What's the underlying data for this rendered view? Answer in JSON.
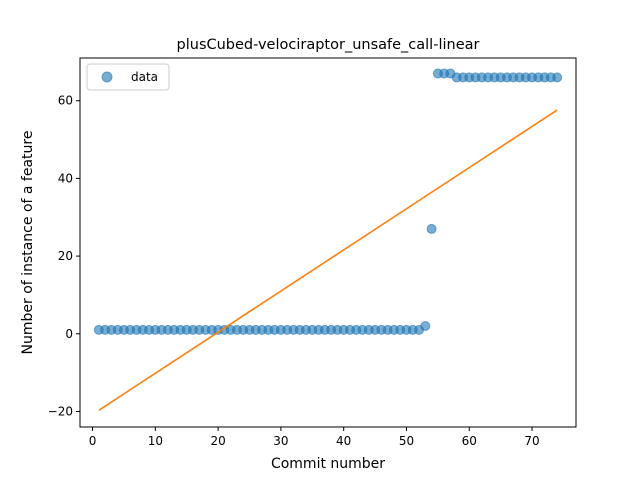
{
  "chart_data": {
    "type": "scatter",
    "title": "plusCubed-velociraptor_unsafe_call-linear",
    "xlabel": "Commit number",
    "ylabel": "Number of instance of a feature",
    "xlim": [
      -2,
      77
    ],
    "ylim": [
      -24,
      71
    ],
    "xticks": [
      0,
      10,
      20,
      30,
      40,
      50,
      60,
      70
    ],
    "yticks": [
      -20,
      0,
      20,
      40,
      60
    ],
    "grid": false,
    "legend": {
      "position": "upper-left",
      "entries": [
        "data"
      ]
    },
    "colors": {
      "data": "#1f77b4",
      "fit": "#ff7f0e"
    },
    "series": [
      {
        "name": "data",
        "kind": "scatter",
        "x": [
          1,
          2,
          3,
          4,
          5,
          6,
          7,
          8,
          9,
          10,
          11,
          12,
          13,
          14,
          15,
          16,
          17,
          18,
          19,
          20,
          21,
          22,
          23,
          24,
          25,
          26,
          27,
          28,
          29,
          30,
          31,
          32,
          33,
          34,
          35,
          36,
          37,
          38,
          39,
          40,
          41,
          42,
          43,
          44,
          45,
          46,
          47,
          48,
          49,
          50,
          51,
          52,
          53,
          54,
          55,
          56,
          57,
          58,
          59,
          60,
          61,
          62,
          63,
          64,
          65,
          66,
          67,
          68,
          69,
          70,
          71,
          72,
          73,
          74
        ],
        "y": [
          1,
          1,
          1,
          1,
          1,
          1,
          1,
          1,
          1,
          1,
          1,
          1,
          1,
          1,
          1,
          1,
          1,
          1,
          1,
          1,
          1,
          1,
          1,
          1,
          1,
          1,
          1,
          1,
          1,
          1,
          1,
          1,
          1,
          1,
          1,
          1,
          1,
          1,
          1,
          1,
          1,
          1,
          1,
          1,
          1,
          1,
          1,
          1,
          1,
          1,
          1,
          1,
          2,
          27,
          67,
          67,
          67,
          66,
          66,
          66,
          66,
          66,
          66,
          66,
          66,
          66,
          66,
          66,
          66,
          66,
          66,
          66,
          66,
          66
        ]
      },
      {
        "name": "",
        "kind": "line",
        "x": [
          1,
          74
        ],
        "y": [
          -19.7,
          57.6
        ]
      }
    ]
  }
}
